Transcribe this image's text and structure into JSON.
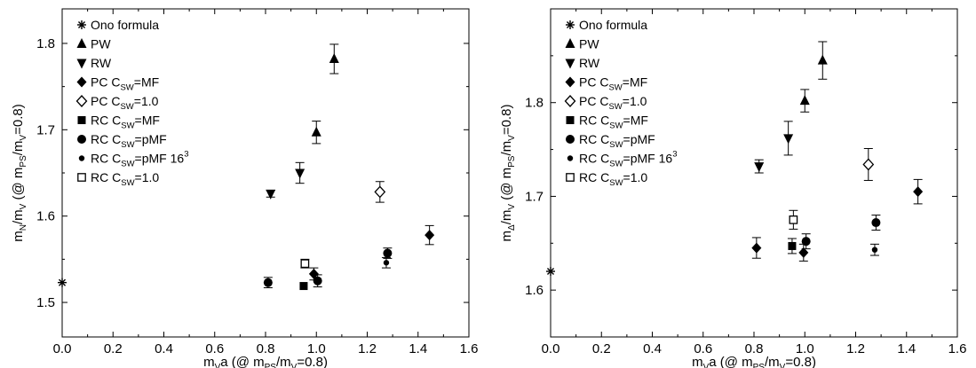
{
  "colors": {
    "ink": "#000000",
    "background": "#ffffff"
  },
  "chart_data": [
    {
      "type": "scatter",
      "title": "",
      "xlabel": {
        "main": "m",
        "sub1": "V",
        "mid": "a  (@ m",
        "sub2": "PS",
        "mid2": "/m",
        "sub3": "V",
        "end": "=0.8)"
      },
      "ylabel": {
        "main": "m",
        "sub1": "N",
        "mid": "/m",
        "sub2": "V",
        "mid2": "  (@ m",
        "sub3": "PS",
        "mid3": "/m",
        "sub4": "V",
        "end": "=0.8)"
      },
      "xlim": [
        0.0,
        1.6
      ],
      "ylim": [
        1.46,
        1.84
      ],
      "xticks": [
        "0.0",
        "0.2",
        "0.4",
        "0.6",
        "0.8",
        "1.0",
        "1.2",
        "1.4",
        "1.6"
      ],
      "xtick_values": [
        0.0,
        0.2,
        0.4,
        0.6,
        0.8,
        1.0,
        1.2,
        1.4,
        1.6
      ],
      "yticks": [
        "1.5",
        "1.6",
        "1.7",
        "1.8"
      ],
      "ytick_values": [
        1.5,
        1.6,
        1.7,
        1.8
      ],
      "grid": false,
      "legend_position": "top-left",
      "legend": [
        {
          "marker": "asterisk",
          "parts": [
            {
              "t": "Ono formula"
            }
          ]
        },
        {
          "marker": "triangle-up",
          "parts": [
            {
              "t": "PW"
            }
          ]
        },
        {
          "marker": "triangle-down",
          "parts": [
            {
              "t": "RW"
            }
          ]
        },
        {
          "marker": "diamond",
          "parts": [
            {
              "t": "PC C"
            },
            {
              "t": "SW",
              "sub": true
            },
            {
              "t": "=MF"
            }
          ]
        },
        {
          "marker": "diamond-open",
          "parts": [
            {
              "t": "PC C"
            },
            {
              "t": "SW",
              "sub": true
            },
            {
              "t": "=1.0"
            }
          ]
        },
        {
          "marker": "square",
          "parts": [
            {
              "t": "RC C"
            },
            {
              "t": "SW",
              "sub": true
            },
            {
              "t": "=MF"
            }
          ]
        },
        {
          "marker": "circle",
          "parts": [
            {
              "t": "RC C"
            },
            {
              "t": "SW",
              "sub": true
            },
            {
              "t": "=pMF"
            }
          ]
        },
        {
          "marker": "circle-small",
          "parts": [
            {
              "t": "RC C"
            },
            {
              "t": "SW",
              "sub": true
            },
            {
              "t": "=pMF 16"
            },
            {
              "t": "3",
              "sup": true
            }
          ]
        },
        {
          "marker": "square-open",
          "parts": [
            {
              "t": "RC C"
            },
            {
              "t": "SW",
              "sub": true
            },
            {
              "t": "=1.0"
            }
          ]
        }
      ],
      "series": [
        {
          "name": "Ono formula",
          "marker": "asterisk",
          "points": [
            {
              "x": 0.0,
              "y": 1.523,
              "err": 0
            }
          ]
        },
        {
          "name": "PW",
          "marker": "triangle-up",
          "points": [
            {
              "x": 1.0,
              "y": 1.697,
              "err": 0.013
            },
            {
              "x": 1.07,
              "y": 1.782,
              "err": 0.017
            }
          ]
        },
        {
          "name": "RW",
          "marker": "triangle-down",
          "points": [
            {
              "x": 0.82,
              "y": 1.626,
              "err": 0.004
            },
            {
              "x": 0.935,
              "y": 1.65,
              "err": 0.012
            }
          ]
        },
        {
          "name": "PC CSW=MF",
          "marker": "diamond",
          "points": [
            {
              "x": 0.99,
              "y": 1.533,
              "err": 0.007
            },
            {
              "x": 1.445,
              "y": 1.578,
              "err": 0.011
            }
          ]
        },
        {
          "name": "PC CSW=1.0",
          "marker": "diamond-open",
          "points": [
            {
              "x": 1.25,
              "y": 1.628,
              "err": 0.012
            }
          ]
        },
        {
          "name": "RC CSW=MF",
          "marker": "square",
          "points": [
            {
              "x": 0.95,
              "y": 1.519,
              "err": 0
            }
          ]
        },
        {
          "name": "RC CSW=pMF",
          "marker": "circle",
          "points": [
            {
              "x": 0.81,
              "y": 1.523,
              "err": 0.006
            },
            {
              "x": 1.005,
              "y": 1.525,
              "err": 0.007
            },
            {
              "x": 1.28,
              "y": 1.557,
              "err": 0.006
            }
          ]
        },
        {
          "name": "RC CSW=pMF 16^3",
          "marker": "circle-small",
          "points": [
            {
              "x": 1.275,
              "y": 1.546,
              "err": 0.006
            }
          ]
        },
        {
          "name": "RC CSW=1.0",
          "marker": "square-open",
          "points": [
            {
              "x": 0.955,
              "y": 1.545,
              "err": 0.005
            }
          ]
        }
      ]
    },
    {
      "type": "scatter",
      "title": "",
      "xlabel": {
        "main": "m",
        "sub1": "V",
        "mid": "a  (@ m",
        "sub2": "PS",
        "mid2": "/m",
        "sub3": "V",
        "end": "=0.8)"
      },
      "ylabel": {
        "main": "m",
        "sub1": "Δ",
        "mid": "/m",
        "sub2": "V",
        "mid2": "  (@ m",
        "sub3": "PS",
        "mid3": "/m",
        "sub4": "V",
        "end": "=0.8)"
      },
      "xlim": [
        0.0,
        1.6
      ],
      "ylim": [
        1.55,
        1.9
      ],
      "xticks": [
        "0.0",
        "0.2",
        "0.4",
        "0.6",
        "0.8",
        "1.0",
        "1.2",
        "1.4",
        "1.6"
      ],
      "xtick_values": [
        0.0,
        0.2,
        0.4,
        0.6,
        0.8,
        1.0,
        1.2,
        1.4,
        1.6
      ],
      "yticks": [
        "1.6",
        "1.7",
        "1.8"
      ],
      "ytick_values": [
        1.6,
        1.7,
        1.8
      ],
      "grid": false,
      "legend_position": "top-left",
      "legend": [
        {
          "marker": "asterisk",
          "parts": [
            {
              "t": "Ono formula"
            }
          ]
        },
        {
          "marker": "triangle-up",
          "parts": [
            {
              "t": "PW"
            }
          ]
        },
        {
          "marker": "triangle-down",
          "parts": [
            {
              "t": "RW"
            }
          ]
        },
        {
          "marker": "diamond",
          "parts": [
            {
              "t": "PC C"
            },
            {
              "t": "SW",
              "sub": true
            },
            {
              "t": "=MF"
            }
          ]
        },
        {
          "marker": "diamond-open",
          "parts": [
            {
              "t": "PC C"
            },
            {
              "t": "SW",
              "sub": true
            },
            {
              "t": "=1.0"
            }
          ]
        },
        {
          "marker": "square",
          "parts": [
            {
              "t": "RC C"
            },
            {
              "t": "SW",
              "sub": true
            },
            {
              "t": "=MF"
            }
          ]
        },
        {
          "marker": "circle",
          "parts": [
            {
              "t": "RC C"
            },
            {
              "t": "SW",
              "sub": true
            },
            {
              "t": "=pMF"
            }
          ]
        },
        {
          "marker": "circle-small",
          "parts": [
            {
              "t": "RC C"
            },
            {
              "t": "SW",
              "sub": true
            },
            {
              "t": "=pMF 16"
            },
            {
              "t": "3",
              "sup": true
            }
          ]
        },
        {
          "marker": "square-open",
          "parts": [
            {
              "t": "RC C"
            },
            {
              "t": "SW",
              "sub": true
            },
            {
              "t": "=1.0"
            }
          ]
        }
      ],
      "series": [
        {
          "name": "Ono formula",
          "marker": "asterisk",
          "points": [
            {
              "x": 0.0,
              "y": 1.62,
              "err": 0
            }
          ]
        },
        {
          "name": "PW",
          "marker": "triangle-up",
          "points": [
            {
              "x": 1.0,
              "y": 1.802,
              "err": 0.012
            },
            {
              "x": 1.07,
              "y": 1.845,
              "err": 0.02
            }
          ]
        },
        {
          "name": "RW",
          "marker": "triangle-down",
          "points": [
            {
              "x": 0.82,
              "y": 1.732,
              "err": 0.007
            },
            {
              "x": 0.935,
              "y": 1.762,
              "err": 0.018
            }
          ]
        },
        {
          "name": "PC CSW=MF",
          "marker": "diamond",
          "points": [
            {
              "x": 0.81,
              "y": 1.645,
              "err": 0.011
            },
            {
              "x": 0.995,
              "y": 1.64,
              "err": 0.009
            },
            {
              "x": 1.445,
              "y": 1.705,
              "err": 0.013
            }
          ]
        },
        {
          "name": "PC CSW=1.0",
          "marker": "diamond-open",
          "points": [
            {
              "x": 1.25,
              "y": 1.734,
              "err": 0.017
            }
          ]
        },
        {
          "name": "RC CSW=MF",
          "marker": "square",
          "points": [
            {
              "x": 0.95,
              "y": 1.647,
              "err": 0.008
            }
          ]
        },
        {
          "name": "RC CSW=pMF",
          "marker": "circle",
          "points": [
            {
              "x": 1.005,
              "y": 1.652,
              "err": 0.008
            },
            {
              "x": 1.28,
              "y": 1.672,
              "err": 0.008
            }
          ]
        },
        {
          "name": "RC CSW=pMF 16^3",
          "marker": "circle-small",
          "points": [
            {
              "x": 1.275,
              "y": 1.643,
              "err": 0.006
            }
          ]
        },
        {
          "name": "RC CSW=1.0",
          "marker": "square-open",
          "points": [
            {
              "x": 0.955,
              "y": 1.675,
              "err": 0.01
            }
          ]
        }
      ]
    }
  ]
}
